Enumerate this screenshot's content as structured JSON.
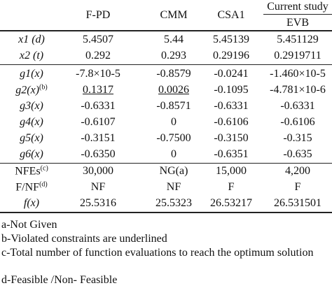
{
  "table": {
    "columns": [
      "F-PD",
      "CMM",
      "CSA1"
    ],
    "group_header": "Current study",
    "last_column": "EVB",
    "rows": [
      {
        "label": "x1 (d)",
        "italic": true,
        "cells": [
          "5.4507",
          "5.44",
          "5.45139",
          "5.451129"
        ]
      },
      {
        "label": "x2 (t)",
        "italic": true,
        "cells": [
          "0.292",
          "0.293",
          "0.29196",
          "0.2919711"
        ]
      },
      {
        "label": "g1(x)",
        "italic": true,
        "cells": [
          "-7.8×10-5",
          "-0.8579",
          "-0.0241",
          "-1.460×10-5"
        ]
      },
      {
        "label": "g2(x)",
        "sup": "(b)",
        "italic": true,
        "cells": [
          "0.1317",
          "0.0026",
          "-0.1095",
          "-4.781×10-6"
        ],
        "underlined": [
          true,
          true,
          false,
          false
        ]
      },
      {
        "label": "g3(x)",
        "italic": true,
        "cells": [
          "-0.6331",
          "-0.8571",
          "-0.6331",
          "-0.6331"
        ]
      },
      {
        "label": "g4(x)",
        "italic": true,
        "cells": [
          "-0.6107",
          "0",
          "-0.6106",
          "-0.6106"
        ]
      },
      {
        "label": "g5(x)",
        "italic": true,
        "cells": [
          "-0.3151",
          "-0.7500",
          "-0.3150",
          "-0.315"
        ]
      },
      {
        "label": "g6(x)",
        "italic": true,
        "cells": [
          "-0.6350",
          "0",
          "-0.6351",
          "-0.635"
        ]
      },
      {
        "label": "NFEs",
        "sup": "(c)",
        "italic": false,
        "cells": [
          "30,000",
          "NG(a)",
          "15,000",
          "4,200"
        ]
      },
      {
        "label": "F/NF",
        "sup": "(d)",
        "italic": false,
        "cells": [
          "NF",
          "NF",
          "F",
          "F"
        ]
      },
      {
        "label": "f(x)",
        "italic": true,
        "cells": [
          "25.5316",
          "25.5323",
          "26.53217",
          "26.531501"
        ]
      }
    ],
    "notes": [
      "a-Not Given",
      "b-Violated constraints are underlined",
      "c-Total number of function evaluations to reach the optimum solution",
      "d-Feasible /Non- Feasible"
    ]
  }
}
